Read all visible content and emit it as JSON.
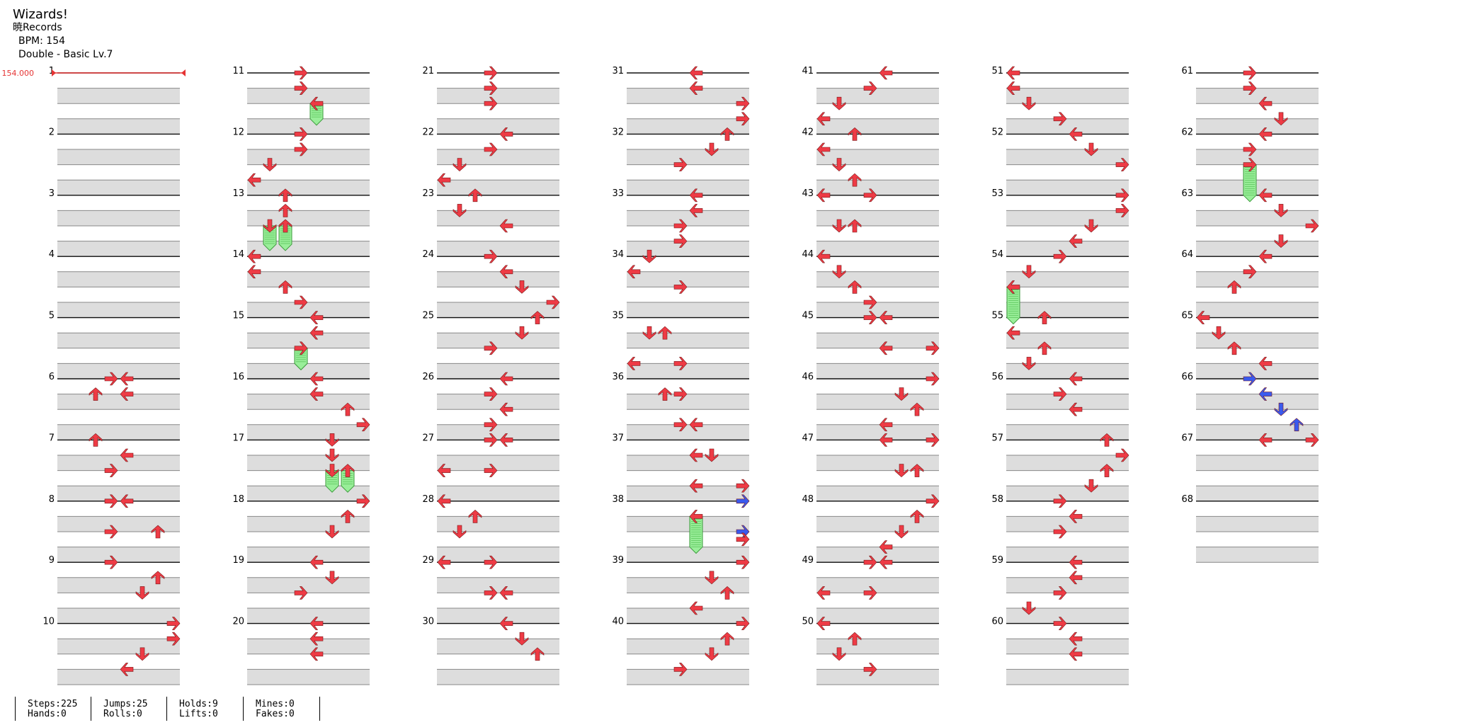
{
  "song": {
    "title": "Wizards!",
    "artist": "暁Records",
    "bpm_label": "BPM: 154",
    "difficulty": "Double - Basic Lv.7"
  },
  "bpm_marker": "154.000",
  "colors": {
    "arrow_red": "#ee3b45",
    "arrow_blue": "#3a5aee",
    "hold_green": "#99ee99",
    "row_gray": "#dddddd",
    "bpm_red": "#e53333"
  },
  "measures": [
    "1",
    "2",
    "3",
    "4",
    "5",
    "6",
    "7",
    "8",
    "9",
    "10",
    "11",
    "12",
    "13",
    "14",
    "15",
    "16",
    "17",
    "18",
    "19",
    "20",
    "21",
    "22",
    "23",
    "24",
    "25",
    "26",
    "27",
    "28",
    "29",
    "30",
    "31",
    "32",
    "33",
    "34",
    "35",
    "36",
    "37",
    "38",
    "39",
    "40",
    "41",
    "42",
    "43",
    "44",
    "45",
    "46",
    "47",
    "48",
    "49",
    "50",
    "51",
    "52",
    "53",
    "54",
    "55",
    "56",
    "57",
    "58",
    "59",
    "60",
    "61",
    "62",
    "63",
    "64",
    "65",
    "66",
    "67",
    "68"
  ],
  "notes": [
    {
      "m": 6,
      "b": 0,
      "l": 3,
      "c": "r"
    },
    {
      "m": 6,
      "b": 0,
      "l": 4,
      "c": "r"
    },
    {
      "m": 6,
      "b": 1,
      "l": 2,
      "c": "r"
    },
    {
      "m": 6,
      "b": 1,
      "l": 4,
      "c": "r"
    },
    {
      "m": 7,
      "b": 0,
      "l": 2,
      "c": "r"
    },
    {
      "m": 7,
      "b": 1,
      "l": 4,
      "c": "r"
    },
    {
      "m": 7,
      "b": 2,
      "l": 3,
      "c": "r"
    },
    {
      "m": 8,
      "b": 0,
      "l": 3,
      "c": "r"
    },
    {
      "m": 8,
      "b": 0,
      "l": 4,
      "c": "r"
    },
    {
      "m": 8,
      "b": 2,
      "l": 3,
      "c": "r"
    },
    {
      "m": 8,
      "b": 2,
      "l": 6,
      "c": "r"
    },
    {
      "m": 9,
      "b": 0,
      "l": 3,
      "c": "r"
    },
    {
      "m": 9,
      "b": 1,
      "l": 6,
      "c": "r"
    },
    {
      "m": 9,
      "b": 2,
      "l": 5,
      "c": "r"
    },
    {
      "m": 10,
      "b": 0,
      "l": 7,
      "c": "r"
    },
    {
      "m": 10,
      "b": 1,
      "l": 7,
      "c": "r"
    },
    {
      "m": 10,
      "b": 2,
      "l": 5,
      "c": "r"
    },
    {
      "m": 10,
      "b": 3,
      "l": 4,
      "c": "r"
    },
    {
      "m": 11,
      "b": 0,
      "l": 3,
      "c": "r"
    },
    {
      "m": 11,
      "b": 1,
      "l": 3,
      "c": "r"
    },
    {
      "m": 11,
      "b": 2,
      "l": 4,
      "c": "r",
      "hold": 1
    },
    {
      "m": 12,
      "b": 0,
      "l": 3,
      "c": "r"
    },
    {
      "m": 12,
      "b": 1,
      "l": 3,
      "c": "r"
    },
    {
      "m": 12,
      "b": 2,
      "l": 1,
      "c": "r"
    },
    {
      "m": 12,
      "b": 3,
      "l": 0,
      "c": "r"
    },
    {
      "m": 13,
      "b": 0,
      "l": 2,
      "c": "r"
    },
    {
      "m": 13,
      "b": 1,
      "l": 2,
      "c": "r"
    },
    {
      "m": 13,
      "b": 2,
      "l": 1,
      "c": "r",
      "hold": 1.2
    },
    {
      "m": 13,
      "b": 2,
      "l": 2,
      "c": "r",
      "hold": 1.2
    },
    {
      "m": 14,
      "b": 0,
      "l": 0,
      "c": "r"
    },
    {
      "m": 14,
      "b": 1,
      "l": 0,
      "c": "r"
    },
    {
      "m": 14,
      "b": 2,
      "l": 2,
      "c": "r"
    },
    {
      "m": 14,
      "b": 3,
      "l": 3,
      "c": "r"
    },
    {
      "m": 15,
      "b": 0,
      "l": 4,
      "c": "r"
    },
    {
      "m": 15,
      "b": 1,
      "l": 4,
      "c": "r"
    },
    {
      "m": 15,
      "b": 2,
      "l": 3,
      "c": "r",
      "hold": 1
    },
    {
      "m": 16,
      "b": 0,
      "l": 4,
      "c": "r"
    },
    {
      "m": 16,
      "b": 1,
      "l": 4,
      "c": "r"
    },
    {
      "m": 16,
      "b": 2,
      "l": 6,
      "c": "r"
    },
    {
      "m": 16,
      "b": 3,
      "l": 7,
      "c": "r"
    },
    {
      "m": 17,
      "b": 0,
      "l": 5,
      "c": "r"
    },
    {
      "m": 17,
      "b": 1,
      "l": 5,
      "c": "r"
    },
    {
      "m": 17,
      "b": 2,
      "l": 5,
      "c": "r",
      "hold": 1
    },
    {
      "m": 17,
      "b": 2,
      "l": 6,
      "c": "r",
      "hold": 1
    },
    {
      "m": 18,
      "b": 0,
      "l": 7,
      "c": "r"
    },
    {
      "m": 18,
      "b": 1,
      "l": 6,
      "c": "r"
    },
    {
      "m": 18,
      "b": 2,
      "l": 5,
      "c": "r"
    },
    {
      "m": 19,
      "b": 0,
      "l": 4,
      "c": "r"
    },
    {
      "m": 19,
      "b": 1,
      "l": 5,
      "c": "r"
    },
    {
      "m": 19,
      "b": 2,
      "l": 3,
      "c": "r"
    },
    {
      "m": 20,
      "b": 0,
      "l": 4,
      "c": "r"
    },
    {
      "m": 20,
      "b": 1,
      "l": 4,
      "c": "r"
    },
    {
      "m": 20,
      "b": 2,
      "l": 4,
      "c": "r"
    },
    {
      "m": 21,
      "b": 0,
      "l": 3,
      "c": "r"
    },
    {
      "m": 21,
      "b": 1,
      "l": 3,
      "c": "r"
    },
    {
      "m": 21,
      "b": 2,
      "l": 3,
      "c": "r"
    },
    {
      "m": 22,
      "b": 0,
      "l": 4,
      "c": "r"
    },
    {
      "m": 22,
      "b": 1,
      "l": 3,
      "c": "r"
    },
    {
      "m": 22,
      "b": 2,
      "l": 1,
      "c": "r"
    },
    {
      "m": 22,
      "b": 3,
      "l": 0,
      "c": "r"
    },
    {
      "m": 23,
      "b": 0,
      "l": 2,
      "c": "r"
    },
    {
      "m": 23,
      "b": 1,
      "l": 1,
      "c": "r"
    },
    {
      "m": 23,
      "b": 2,
      "l": 4,
      "c": "r"
    },
    {
      "m": 24,
      "b": 0,
      "l": 3,
      "c": "r"
    },
    {
      "m": 24,
      "b": 1,
      "l": 4,
      "c": "r"
    },
    {
      "m": 24,
      "b": 2,
      "l": 5,
      "c": "r"
    },
    {
      "m": 24,
      "b": 3,
      "l": 7,
      "c": "r"
    },
    {
      "m": 25,
      "b": 0,
      "l": 6,
      "c": "r"
    },
    {
      "m": 25,
      "b": 1,
      "l": 5,
      "c": "r"
    },
    {
      "m": 25,
      "b": 2,
      "l": 3,
      "c": "r"
    },
    {
      "m": 26,
      "b": 0,
      "l": 4,
      "c": "r"
    },
    {
      "m": 26,
      "b": 1,
      "l": 3,
      "c": "r"
    },
    {
      "m": 26,
      "b": 2,
      "l": 4,
      "c": "r"
    },
    {
      "m": 26,
      "b": 3,
      "l": 3,
      "c": "r"
    },
    {
      "m": 27,
      "b": 0,
      "l": 3,
      "c": "r"
    },
    {
      "m": 27,
      "b": 0,
      "l": 4,
      "c": "r"
    },
    {
      "m": 27,
      "b": 2,
      "l": 0,
      "c": "r"
    },
    {
      "m": 27,
      "b": 2,
      "l": 3,
      "c": "r"
    },
    {
      "m": 28,
      "b": 0,
      "l": 0,
      "c": "r"
    },
    {
      "m": 28,
      "b": 1,
      "l": 2,
      "c": "r"
    },
    {
      "m": 28,
      "b": 2,
      "l": 1,
      "c": "r"
    },
    {
      "m": 29,
      "b": 0,
      "l": 0,
      "c": "r"
    },
    {
      "m": 29,
      "b": 0,
      "l": 3,
      "c": "r"
    },
    {
      "m": 29,
      "b": 2,
      "l": 3,
      "c": "r"
    },
    {
      "m": 29,
      "b": 2,
      "l": 4,
      "c": "r"
    },
    {
      "m": 30,
      "b": 0,
      "l": 4,
      "c": "r"
    },
    {
      "m": 30,
      "b": 1,
      "l": 5,
      "c": "r"
    },
    {
      "m": 30,
      "b": 2,
      "l": 6,
      "c": "r"
    },
    {
      "m": 31,
      "b": 0,
      "l": 4,
      "c": "r"
    },
    {
      "m": 31,
      "b": 1,
      "l": 4,
      "c": "r"
    },
    {
      "m": 31,
      "b": 2,
      "l": 7,
      "c": "r"
    },
    {
      "m": 31,
      "b": 3,
      "l": 7,
      "c": "r"
    },
    {
      "m": 32,
      "b": 0,
      "l": 6,
      "c": "r"
    },
    {
      "m": 32,
      "b": 1,
      "l": 5,
      "c": "r"
    },
    {
      "m": 32,
      "b": 2,
      "l": 3,
      "c": "r"
    },
    {
      "m": 33,
      "b": 0,
      "l": 4,
      "c": "r"
    },
    {
      "m": 33,
      "b": 1,
      "l": 4,
      "c": "r"
    },
    {
      "m": 33,
      "b": 2,
      "l": 3,
      "c": "r"
    },
    {
      "m": 33,
      "b": 3,
      "l": 3,
      "c": "r"
    },
    {
      "m": 34,
      "b": 0,
      "l": 1,
      "c": "r"
    },
    {
      "m": 34,
      "b": 1,
      "l": 0,
      "c": "r"
    },
    {
      "m": 34,
      "b": 2,
      "l": 3,
      "c": "r"
    },
    {
      "m": 35,
      "b": 1,
      "l": 1,
      "c": "r"
    },
    {
      "m": 35,
      "b": 1,
      "l": 2,
      "c": "r"
    },
    {
      "m": 35,
      "b": 3,
      "l": 0,
      "c": "r"
    },
    {
      "m": 35,
      "b": 3,
      "l": 3,
      "c": "r"
    },
    {
      "m": 36,
      "b": 1,
      "l": 2,
      "c": "r"
    },
    {
      "m": 36,
      "b": 1,
      "l": 3,
      "c": "r"
    },
    {
      "m": 36,
      "b": 3,
      "l": 3,
      "c": "r"
    },
    {
      "m": 36,
      "b": 3,
      "l": 4,
      "c": "r"
    },
    {
      "m": 37,
      "b": 1,
      "l": 4,
      "c": "r"
    },
    {
      "m": 37,
      "b": 1,
      "l": 5,
      "c": "r"
    },
    {
      "m": 37,
      "b": 3,
      "l": 4,
      "c": "r"
    },
    {
      "m": 37,
      "b": 3,
      "l": 7,
      "c": "r"
    },
    {
      "m": 38,
      "b": 0,
      "l": 7,
      "c": "b"
    },
    {
      "m": 38,
      "b": 1,
      "l": 4,
      "c": "r",
      "hold": 2
    },
    {
      "m": 38,
      "b": 2,
      "l": 7,
      "c": "b"
    },
    {
      "m": 38,
      "b": 2.5,
      "l": 7,
      "c": "r"
    },
    {
      "m": 39,
      "b": 0,
      "l": 7,
      "c": "r"
    },
    {
      "m": 39,
      "b": 1,
      "l": 5,
      "c": "r"
    },
    {
      "m": 39,
      "b": 2,
      "l": 6,
      "c": "r"
    },
    {
      "m": 39,
      "b": 3,
      "l": 4,
      "c": "r"
    },
    {
      "m": 40,
      "b": 0,
      "l": 7,
      "c": "r"
    },
    {
      "m": 40,
      "b": 1,
      "l": 6,
      "c": "r"
    },
    {
      "m": 40,
      "b": 2,
      "l": 5,
      "c": "r"
    },
    {
      "m": 40,
      "b": 3,
      "l": 3,
      "c": "r"
    },
    {
      "m": 41,
      "b": 0,
      "l": 4,
      "c": "r"
    },
    {
      "m": 41,
      "b": 1,
      "l": 3,
      "c": "r"
    },
    {
      "m": 41,
      "b": 2,
      "l": 1,
      "c": "r"
    },
    {
      "m": 41,
      "b": 3,
      "l": 0,
      "c": "r"
    },
    {
      "m": 42,
      "b": 0,
      "l": 2,
      "c": "r"
    },
    {
      "m": 42,
      "b": 1,
      "l": 0,
      "c": "r"
    },
    {
      "m": 42,
      "b": 2,
      "l": 1,
      "c": "r"
    },
    {
      "m": 42,
      "b": 3,
      "l": 2,
      "c": "r"
    },
    {
      "m": 43,
      "b": 0,
      "l": 0,
      "c": "r"
    },
    {
      "m": 43,
      "b": 0,
      "l": 3,
      "c": "r"
    },
    {
      "m": 43,
      "b": 2,
      "l": 1,
      "c": "r"
    },
    {
      "m": 43,
      "b": 2,
      "l": 2,
      "c": "r"
    },
    {
      "m": 44,
      "b": 0,
      "l": 0,
      "c": "r"
    },
    {
      "m": 44,
      "b": 1,
      "l": 1,
      "c": "r"
    },
    {
      "m": 44,
      "b": 2,
      "l": 2,
      "c": "r"
    },
    {
      "m": 44,
      "b": 3,
      "l": 3,
      "c": "r"
    },
    {
      "m": 45,
      "b": 0,
      "l": 3,
      "c": "r"
    },
    {
      "m": 45,
      "b": 0,
      "l": 4,
      "c": "r"
    },
    {
      "m": 45,
      "b": 2,
      "l": 4,
      "c": "r"
    },
    {
      "m": 45,
      "b": 2,
      "l": 7,
      "c": "r"
    },
    {
      "m": 46,
      "b": 0,
      "l": 7,
      "c": "r"
    },
    {
      "m": 46,
      "b": 1,
      "l": 5,
      "c": "r"
    },
    {
      "m": 46,
      "b": 2,
      "l": 6,
      "c": "r"
    },
    {
      "m": 46,
      "b": 3,
      "l": 4,
      "c": "r"
    },
    {
      "m": 47,
      "b": 0,
      "l": 4,
      "c": "r"
    },
    {
      "m": 47,
      "b": 0,
      "l": 7,
      "c": "r"
    },
    {
      "m": 47,
      "b": 2,
      "l": 5,
      "c": "r"
    },
    {
      "m": 47,
      "b": 2,
      "l": 6,
      "c": "r"
    },
    {
      "m": 48,
      "b": 0,
      "l": 7,
      "c": "r"
    },
    {
      "m": 48,
      "b": 1,
      "l": 6,
      "c": "r"
    },
    {
      "m": 48,
      "b": 2,
      "l": 5,
      "c": "r"
    },
    {
      "m": 48,
      "b": 3,
      "l": 4,
      "c": "r"
    },
    {
      "m": 49,
      "b": 0,
      "l": 3,
      "c": "r"
    },
    {
      "m": 49,
      "b": 0,
      "l": 4,
      "c": "r"
    },
    {
      "m": 49,
      "b": 2,
      "l": 0,
      "c": "r"
    },
    {
      "m": 49,
      "b": 2,
      "l": 3,
      "c": "r"
    },
    {
      "m": 50,
      "b": 0,
      "l": 0,
      "c": "r"
    },
    {
      "m": 50,
      "b": 1,
      "l": 2,
      "c": "r"
    },
    {
      "m": 50,
      "b": 2,
      "l": 1,
      "c": "r"
    },
    {
      "m": 50,
      "b": 3,
      "l": 3,
      "c": "r"
    },
    {
      "m": 51,
      "b": 0,
      "l": 0,
      "c": "r"
    },
    {
      "m": 51,
      "b": 1,
      "l": 0,
      "c": "r"
    },
    {
      "m": 51,
      "b": 2,
      "l": 1,
      "c": "r"
    },
    {
      "m": 51,
      "b": 3,
      "l": 3,
      "c": "r"
    },
    {
      "m": 52,
      "b": 0,
      "l": 4,
      "c": "r"
    },
    {
      "m": 52,
      "b": 1,
      "l": 5,
      "c": "r"
    },
    {
      "m": 52,
      "b": 2,
      "l": 7,
      "c": "r"
    },
    {
      "m": 53,
      "b": 0,
      "l": 7,
      "c": "r"
    },
    {
      "m": 53,
      "b": 1,
      "l": 7,
      "c": "r"
    },
    {
      "m": 53,
      "b": 2,
      "l": 5,
      "c": "r"
    },
    {
      "m": 53,
      "b": 3,
      "l": 4,
      "c": "r"
    },
    {
      "m": 54,
      "b": 0,
      "l": 3,
      "c": "r"
    },
    {
      "m": 54,
      "b": 1,
      "l": 1,
      "c": "r"
    },
    {
      "m": 54,
      "b": 2,
      "l": 0,
      "c": "r",
      "hold": 2
    },
    {
      "m": 55,
      "b": 0,
      "l": 2,
      "c": "r"
    },
    {
      "m": 55,
      "b": 1,
      "l": 0,
      "c": "r"
    },
    {
      "m": 55,
      "b": 2,
      "l": 2,
      "c": "r"
    },
    {
      "m": 55,
      "b": 3,
      "l": 1,
      "c": "r"
    },
    {
      "m": 56,
      "b": 0,
      "l": 4,
      "c": "r"
    },
    {
      "m": 56,
      "b": 1,
      "l": 3,
      "c": "r"
    },
    {
      "m": 56,
      "b": 2,
      "l": 4,
      "c": "r"
    },
    {
      "m": 57,
      "b": 0,
      "l": 6,
      "c": "r"
    },
    {
      "m": 57,
      "b": 1,
      "l": 7,
      "c": "r"
    },
    {
      "m": 57,
      "b": 2,
      "l": 6,
      "c": "r"
    },
    {
      "m": 57,
      "b": 3,
      "l": 5,
      "c": "r"
    },
    {
      "m": 58,
      "b": 0,
      "l": 3,
      "c": "r"
    },
    {
      "m": 58,
      "b": 1,
      "l": 4,
      "c": "r"
    },
    {
      "m": 58,
      "b": 2,
      "l": 3,
      "c": "r"
    },
    {
      "m": 59,
      "b": 0,
      "l": 4,
      "c": "r"
    },
    {
      "m": 59,
      "b": 1,
      "l": 4,
      "c": "r"
    },
    {
      "m": 59,
      "b": 2,
      "l": 3,
      "c": "r"
    },
    {
      "m": 59,
      "b": 3,
      "l": 1,
      "c": "r"
    },
    {
      "m": 60,
      "b": 0,
      "l": 3,
      "c": "r"
    },
    {
      "m": 60,
      "b": 1,
      "l": 4,
      "c": "r"
    },
    {
      "m": 60,
      "b": 2,
      "l": 4,
      "c": "r"
    },
    {
      "m": 61,
      "b": 0,
      "l": 3,
      "c": "r"
    },
    {
      "m": 61,
      "b": 1,
      "l": 3,
      "c": "r"
    },
    {
      "m": 61,
      "b": 2,
      "l": 4,
      "c": "r"
    },
    {
      "m": 61,
      "b": 3,
      "l": 5,
      "c": "r"
    },
    {
      "m": 62,
      "b": 0,
      "l": 4,
      "c": "r"
    },
    {
      "m": 62,
      "b": 1,
      "l": 3,
      "c": "r"
    },
    {
      "m": 62,
      "b": 2,
      "l": 3,
      "c": "r",
      "hold": 2
    },
    {
      "m": 63,
      "b": 0,
      "l": 4,
      "c": "r"
    },
    {
      "m": 63,
      "b": 1,
      "l": 5,
      "c": "r"
    },
    {
      "m": 63,
      "b": 2,
      "l": 7,
      "c": "r"
    },
    {
      "m": 63,
      "b": 3,
      "l": 5,
      "c": "r"
    },
    {
      "m": 64,
      "b": 0,
      "l": 4,
      "c": "r"
    },
    {
      "m": 64,
      "b": 1,
      "l": 3,
      "c": "r"
    },
    {
      "m": 64,
      "b": 2,
      "l": 2,
      "c": "r"
    },
    {
      "m": 65,
      "b": 0,
      "l": 0,
      "c": "r"
    },
    {
      "m": 65,
      "b": 1,
      "l": 1,
      "c": "r"
    },
    {
      "m": 65,
      "b": 2,
      "l": 2,
      "c": "r"
    },
    {
      "m": 65,
      "b": 3,
      "l": 4,
      "c": "r"
    },
    {
      "m": 66,
      "b": 0,
      "l": 3,
      "c": "b"
    },
    {
      "m": 66,
      "b": 1,
      "l": 4,
      "c": "b"
    },
    {
      "m": 66,
      "b": 2,
      "l": 5,
      "c": "b"
    },
    {
      "m": 66,
      "b": 3,
      "l": 6,
      "c": "b"
    },
    {
      "m": 67,
      "b": 0,
      "l": 4,
      "c": "r"
    },
    {
      "m": 67,
      "b": 0,
      "l": 7,
      "c": "r"
    }
  ],
  "stats": [
    {
      "top": "Steps:225",
      "bottom": "Hands:0"
    },
    {
      "top": "Jumps:25",
      "bottom": "Rolls:0"
    },
    {
      "top": "Holds:9",
      "bottom": "Lifts:0"
    },
    {
      "top": "Mines:0",
      "bottom": "Fakes:0"
    }
  ]
}
